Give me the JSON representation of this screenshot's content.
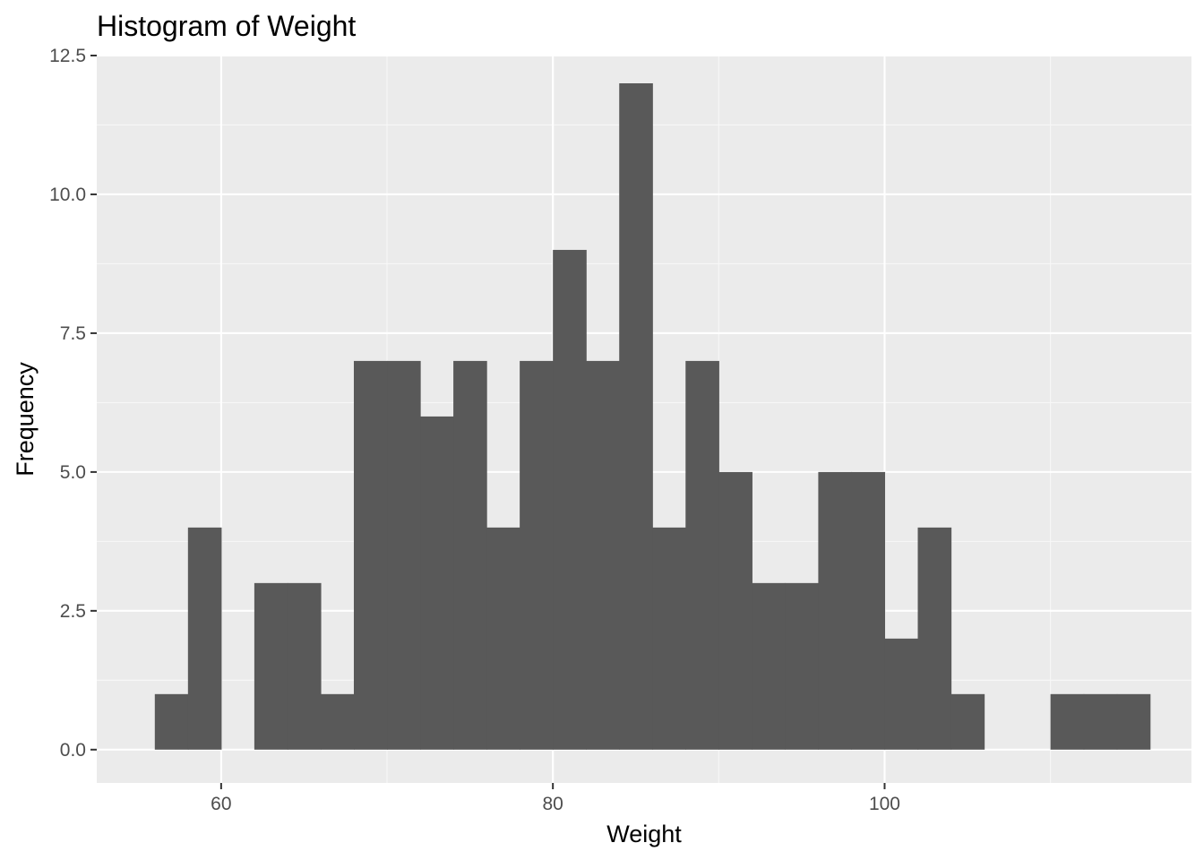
{
  "chart_data": {
    "type": "bar",
    "title": "Histogram of Weight",
    "xlabel": "Weight",
    "ylabel": "Frequency",
    "xlim": [
      52.5,
      118.5
    ],
    "ylim": [
      -0.6,
      12.5
    ],
    "x_ticks": [
      60,
      80,
      100
    ],
    "x_tick_labels": [
      "60",
      "80",
      "100"
    ],
    "y_ticks": [
      0,
      2.5,
      5,
      7.5,
      10,
      12.5
    ],
    "y_tick_labels": [
      "0.0",
      "2.5",
      "5.0",
      "7.5",
      "10.0",
      "12.5"
    ],
    "bin_width": 2,
    "bins": [
      {
        "x0": 56,
        "x1": 58,
        "count": 1
      },
      {
        "x0": 58,
        "x1": 60,
        "count": 4
      },
      {
        "x0": 60,
        "x1": 62,
        "count": 0
      },
      {
        "x0": 62,
        "x1": 64,
        "count": 3
      },
      {
        "x0": 64,
        "x1": 66,
        "count": 3
      },
      {
        "x0": 66,
        "x1": 68,
        "count": 1
      },
      {
        "x0": 68,
        "x1": 70,
        "count": 7
      },
      {
        "x0": 70,
        "x1": 72,
        "count": 7
      },
      {
        "x0": 72,
        "x1": 74,
        "count": 6
      },
      {
        "x0": 74,
        "x1": 76,
        "count": 7
      },
      {
        "x0": 76,
        "x1": 78,
        "count": 4
      },
      {
        "x0": 78,
        "x1": 80,
        "count": 7
      },
      {
        "x0": 80,
        "x1": 82,
        "count": 9
      },
      {
        "x0": 82,
        "x1": 84,
        "count": 7
      },
      {
        "x0": 84,
        "x1": 86,
        "count": 12
      },
      {
        "x0": 86,
        "x1": 88,
        "count": 4
      },
      {
        "x0": 88,
        "x1": 90,
        "count": 7
      },
      {
        "x0": 90,
        "x1": 92,
        "count": 5
      },
      {
        "x0": 92,
        "x1": 94,
        "count": 3
      },
      {
        "x0": 94,
        "x1": 96,
        "count": 3
      },
      {
        "x0": 96,
        "x1": 98,
        "count": 5
      },
      {
        "x0": 98,
        "x1": 100,
        "count": 5
      },
      {
        "x0": 100,
        "x1": 102,
        "count": 2
      },
      {
        "x0": 102,
        "x1": 104,
        "count": 4
      },
      {
        "x0": 104,
        "x1": 106,
        "count": 1
      },
      {
        "x0": 106,
        "x1": 108,
        "count": 0
      },
      {
        "x0": 108,
        "x1": 110,
        "count": 0
      },
      {
        "x0": 110,
        "x1": 112,
        "count": 1
      },
      {
        "x0": 112,
        "x1": 114,
        "count": 1
      },
      {
        "x0": 114,
        "x1": 116,
        "count": 1
      }
    ],
    "grid": true,
    "legend": "none",
    "colors": {
      "panel_background": "#ebebeb",
      "grid_major": "#ffffff",
      "grid_minor": "#f7f7f7",
      "bar_fill": "#595959",
      "tick_color": "#333333"
    }
  }
}
